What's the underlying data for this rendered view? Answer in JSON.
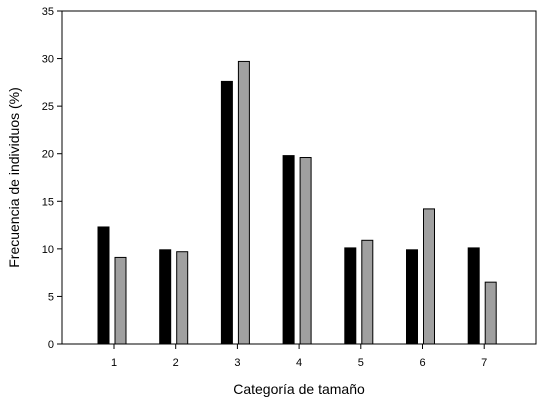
{
  "chart_data": {
    "type": "bar",
    "title": "",
    "xlabel": "Categoría de tamaño",
    "ylabel": "Frecuencia de individuos (%)",
    "categories": [
      "1",
      "2",
      "3",
      "4",
      "5",
      "6",
      "7"
    ],
    "ylim": [
      0,
      35
    ],
    "yticks": [
      "0",
      "5",
      "10",
      "15",
      "20",
      "25",
      "30",
      "35"
    ],
    "grid": false,
    "series": [
      {
        "values": [
          12.3,
          9.9,
          27.6,
          19.8,
          10.1,
          9.9,
          10.1
        ],
        "color": "#000000"
      },
      {
        "values": [
          9.1,
          9.7,
          29.7,
          19.6,
          10.9,
          14.2,
          6.5
        ],
        "color": "#a0a0a0"
      }
    ]
  }
}
